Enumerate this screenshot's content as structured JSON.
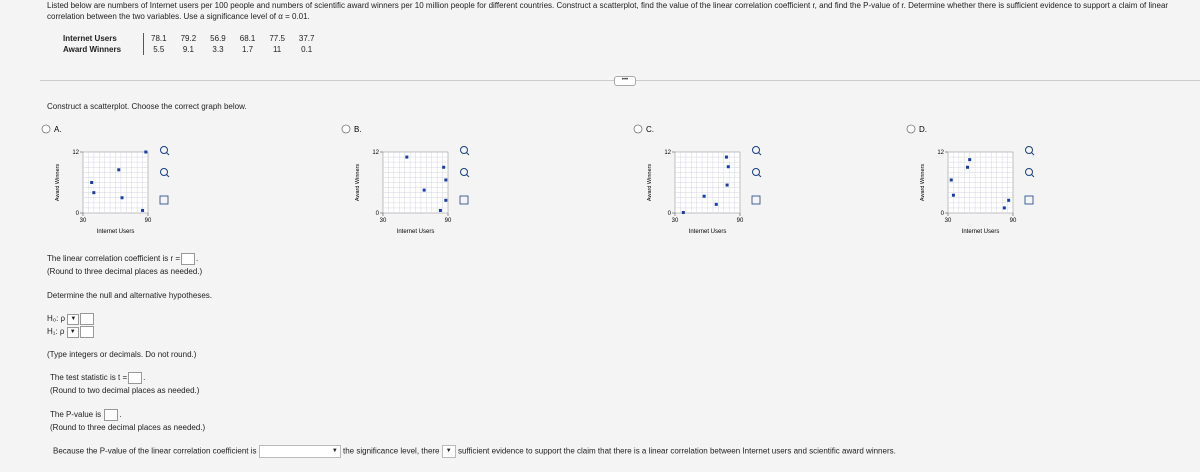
{
  "intro": "Listed below are numbers of Internet users per 100 people and numbers of scientific award winners per 10 million people for different countries. Construct a scatterplot, find the value of the linear correlation coefficient r, and find the P-value of r. Determine whether there is sufficient evidence to support a claim of linear correlation between the two variables. Use a significance level of α = 0.01.",
  "table": {
    "rows": [
      [
        "Internet Users",
        78.1,
        79.2,
        56.9,
        68.1,
        77.5,
        37.7
      ],
      [
        "Award Winners",
        5.5,
        9.1,
        3.3,
        1.7,
        11,
        0.1
      ]
    ]
  },
  "scatter_prompt": "Construct a scatterplot. Choose the correct graph below.",
  "options": [
    {
      "label": "A.",
      "x_label": "Internet Users",
      "y_label": "Award Winners",
      "xticks": [
        30,
        90
      ],
      "yticks": [
        0,
        12
      ],
      "points": {
        "x": [
          38,
          40,
          63,
          66,
          88,
          85
        ],
        "y": [
          6,
          4,
          8.5,
          3,
          12,
          0.5
        ]
      }
    },
    {
      "label": "B.",
      "x_label": "Internet Users",
      "y_label": "Award Winners",
      "xticks": [
        30,
        90
      ],
      "yticks": [
        0,
        12
      ],
      "points": {
        "x": [
          88,
          86,
          88,
          68,
          52,
          83
        ],
        "y": [
          6.5,
          9,
          2.5,
          4.5,
          11,
          0.5
        ]
      }
    },
    {
      "label": "C.",
      "x_label": "Internet Users",
      "y_label": "Award Winners",
      "xticks": [
        30,
        90
      ],
      "yticks": [
        0,
        12
      ],
      "points": {
        "x": [
          78.1,
          79.2,
          56.9,
          68.1,
          77.5,
          37.7
        ],
        "y": [
          5.5,
          9.1,
          3.3,
          1.7,
          11,
          0.1
        ]
      }
    },
    {
      "label": "D.",
      "x_label": "Internet Users",
      "y_label": "Award Winners",
      "xticks": [
        30,
        90
      ],
      "yticks": [
        0,
        12
      ],
      "points": {
        "x": [
          33,
          48,
          50,
          35,
          86,
          82
        ],
        "y": [
          6.5,
          9,
          10.5,
          3.5,
          2.5,
          1
        ]
      }
    }
  ],
  "questions": {
    "r_prompt": "The linear correlation coefficient is r =",
    "r_suffix": ".",
    "r_note": "(Round to three decimal places as needed.)",
    "hyp_prompt": "Determine the null and alternative hypotheses.",
    "h0": "H₀: ρ",
    "h1": "H₁: ρ",
    "hyp_note": "(Type integers or decimals. Do not round.)",
    "t_prompt": "The test statistic is t =",
    "t_suffix": ".",
    "t_note": "(Round to two decimal places as needed.)",
    "p_prompt": "The P-value is",
    "p_suffix": ".",
    "p_note": "(Round to three decimal places as needed.)",
    "conclusion_1": "Because the P-value of the linear correlation coefficient is",
    "conclusion_2": "the significance level, there",
    "conclusion_3": "sufficient evidence to support the claim that there is a linear correlation between Internet users and scientific award winners."
  }
}
